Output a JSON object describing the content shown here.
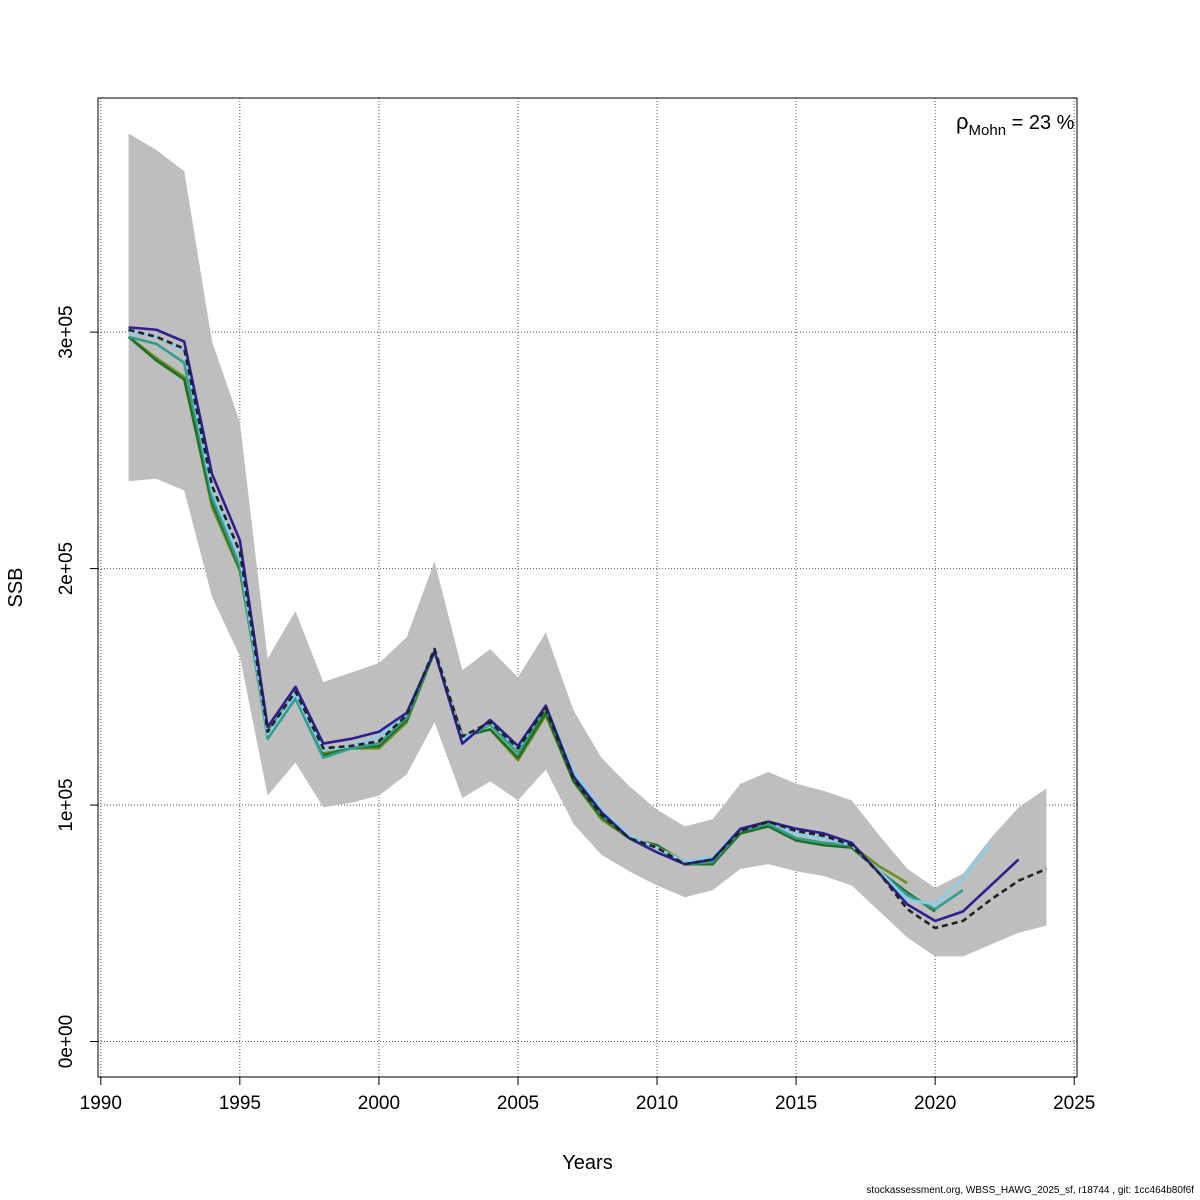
{
  "chart_data": {
    "type": "line",
    "title": "",
    "xlabel": "Years",
    "ylabel": "SSB",
    "xlim": [
      1989.9,
      2025.1
    ],
    "ylim": [
      -15000,
      399000
    ],
    "x_ticks": [
      1990,
      1995,
      2000,
      2005,
      2010,
      2015,
      2020,
      2025
    ],
    "x_tick_labels": [
      "1990",
      "1995",
      "2000",
      "2005",
      "2010",
      "2015",
      "2020",
      "2025"
    ],
    "y_ticks": [
      0,
      100000,
      200000,
      300000
    ],
    "y_tick_labels": [
      "0e+00",
      "1e+05",
      "2e+05",
      "3e+05"
    ],
    "grid": true,
    "annotation": {
      "rho_symbol": "ρ",
      "rho_subscript": "Mohn",
      "value_text": " = 23 %"
    },
    "confidence_band": {
      "color": "#bebebe",
      "x": [
        1991,
        1992,
        1993,
        1994,
        1995,
        1996,
        1997,
        1998,
        1999,
        2000,
        2001,
        2002,
        2003,
        2004,
        2005,
        2006,
        2007,
        2008,
        2009,
        2010,
        2011,
        2012,
        2013,
        2014,
        2015,
        2016,
        2017,
        2018,
        2019,
        2020,
        2021,
        2022,
        2023,
        2024
      ],
      "upper": [
        384000,
        377000,
        368000,
        296000,
        262000,
        162000,
        182000,
        152000,
        156000,
        160000,
        171000,
        203000,
        157000,
        166000,
        154000,
        173000,
        140000,
        120000,
        108000,
        98000,
        91000,
        94000,
        109000,
        114000,
        109000,
        106000,
        102000,
        87000,
        73000,
        65000,
        71000,
        86000,
        99000,
        107000
      ],
      "lower": [
        237000,
        238000,
        233000,
        188000,
        163000,
        104000,
        118000,
        99000,
        101000,
        104000,
        113000,
        135000,
        103000,
        110000,
        102000,
        115000,
        92000,
        79000,
        72000,
        66000,
        61000,
        64000,
        73000,
        75000,
        72000,
        70000,
        66000,
        55000,
        44000,
        36000,
        36000,
        41000,
        46000,
        49000
      ]
    },
    "series": [
      {
        "color": "#222222",
        "style": "dashed",
        "x": [
          1991,
          1992,
          1993,
          1994,
          1995,
          1996,
          1997,
          1998,
          1999,
          2000,
          2001,
          2002,
          2003,
          2004,
          2005,
          2006,
          2007,
          2008,
          2009,
          2010,
          2011,
          2012,
          2013,
          2014,
          2015,
          2016,
          2017,
          2018,
          2019,
          2020,
          2021,
          2022,
          2023,
          2024
        ],
        "values": [
          301000,
          298000,
          293000,
          235000,
          207000,
          131000,
          148000,
          124000,
          125000,
          127000,
          138000,
          166000,
          129000,
          135000,
          124000,
          141000,
          111000,
          96000,
          86000,
          82000,
          75000,
          77000,
          89000,
          93000,
          89000,
          87000,
          83000,
          71000,
          56000,
          48000,
          51000,
          60000,
          68000,
          73000
        ]
      },
      {
        "color": "#2d1f8f",
        "style": "solid",
        "x": [
          1991,
          1992,
          1993,
          1994,
          1995,
          1996,
          1997,
          1998,
          1999,
          2000,
          2001,
          2002,
          2003,
          2004,
          2005,
          2006,
          2007,
          2008,
          2009,
          2010,
          2011,
          2012,
          2013,
          2014,
          2015,
          2016,
          2017,
          2018,
          2019,
          2020,
          2021,
          2022,
          2023
        ],
        "values": [
          302000,
          301000,
          296000,
          240000,
          212000,
          133000,
          150000,
          126000,
          128000,
          131000,
          139000,
          165000,
          126000,
          136000,
          125000,
          142000,
          112000,
          97000,
          86000,
          80000,
          75000,
          77000,
          90000,
          93000,
          90000,
          88000,
          84000,
          71000,
          58000,
          51000,
          55000,
          66000,
          77000
        ]
      },
      {
        "color": "#87ceeb",
        "style": "solid",
        "x": [
          1991,
          1992,
          1993,
          1994,
          1995,
          1996,
          1997,
          1998,
          1999,
          2000,
          2001,
          2002,
          2003,
          2004,
          2005,
          2006,
          2007,
          2008,
          2009,
          2010,
          2011,
          2012,
          2013,
          2014,
          2015,
          2016,
          2017,
          2018,
          2019,
          2020,
          2021,
          2022
        ],
        "values": [
          300000,
          298000,
          292000,
          233000,
          205000,
          130000,
          147000,
          123000,
          125000,
          129000,
          139000,
          166000,
          128000,
          135000,
          124000,
          142000,
          114000,
          98000,
          87000,
          82000,
          76000,
          78000,
          90000,
          93000,
          88000,
          86000,
          83000,
          72000,
          60000,
          58000,
          69000,
          84000
        ]
      },
      {
        "color": "#2f9e8f",
        "style": "solid",
        "x": [
          1991,
          1992,
          1993,
          1994,
          1995,
          1996,
          1997,
          1998,
          1999,
          2000,
          2001,
          2002,
          2003,
          2004,
          2005,
          2006,
          2007,
          2008,
          2009,
          2010,
          2011,
          2012,
          2013,
          2014,
          2015,
          2016,
          2017,
          2018,
          2019,
          2020,
          2021
        ],
        "values": [
          298000,
          295000,
          287000,
          230000,
          201000,
          128000,
          145000,
          120000,
          124000,
          126000,
          137000,
          165000,
          128000,
          134000,
          122000,
          141000,
          112000,
          96000,
          86000,
          82000,
          75000,
          76000,
          89000,
          92000,
          86000,
          84000,
          83000,
          72000,
          62000,
          56000,
          64000
        ]
      },
      {
        "color": "#1f6f1f",
        "style": "solid",
        "x": [
          1991,
          1992,
          1993,
          1994,
          1995,
          1996,
          1997,
          1998,
          1999,
          2000,
          2001,
          2002,
          2003,
          2004,
          2005,
          2006,
          2007,
          2008,
          2009,
          2010,
          2011,
          2012,
          2013,
          2014,
          2015,
          2016,
          2017,
          2018,
          2019,
          2020
        ],
        "values": [
          298000,
          288000,
          280000,
          228000,
          200000,
          131000,
          147000,
          121000,
          124000,
          125000,
          136000,
          165000,
          129000,
          132000,
          120000,
          139000,
          110000,
          95000,
          86000,
          83000,
          75000,
          75000,
          88000,
          91000,
          85000,
          83000,
          82000,
          72000,
          63000,
          55000
        ]
      },
      {
        "color": "#6b8e23",
        "style": "solid",
        "x": [
          1991,
          1992,
          1993,
          1994,
          1995,
          1996,
          1997,
          1998,
          1999,
          2000,
          2001,
          2002,
          2003,
          2004,
          2005,
          2006,
          2007,
          2008,
          2009,
          2010,
          2011,
          2012,
          2013,
          2014,
          2015,
          2016,
          2017,
          2018,
          2019
        ],
        "values": [
          298000,
          289000,
          281000,
          226000,
          199000,
          131000,
          147000,
          122000,
          124000,
          124000,
          135000,
          165000,
          129000,
          132000,
          119000,
          138000,
          110000,
          94000,
          86000,
          83000,
          76000,
          76000,
          88000,
          91000,
          86000,
          84000,
          83000,
          74000,
          67000
        ]
      }
    ]
  },
  "footer": "stockassessment.org, WBSS_HAWG_2025_sf, r18744 , git: 1cc464b80f6f"
}
